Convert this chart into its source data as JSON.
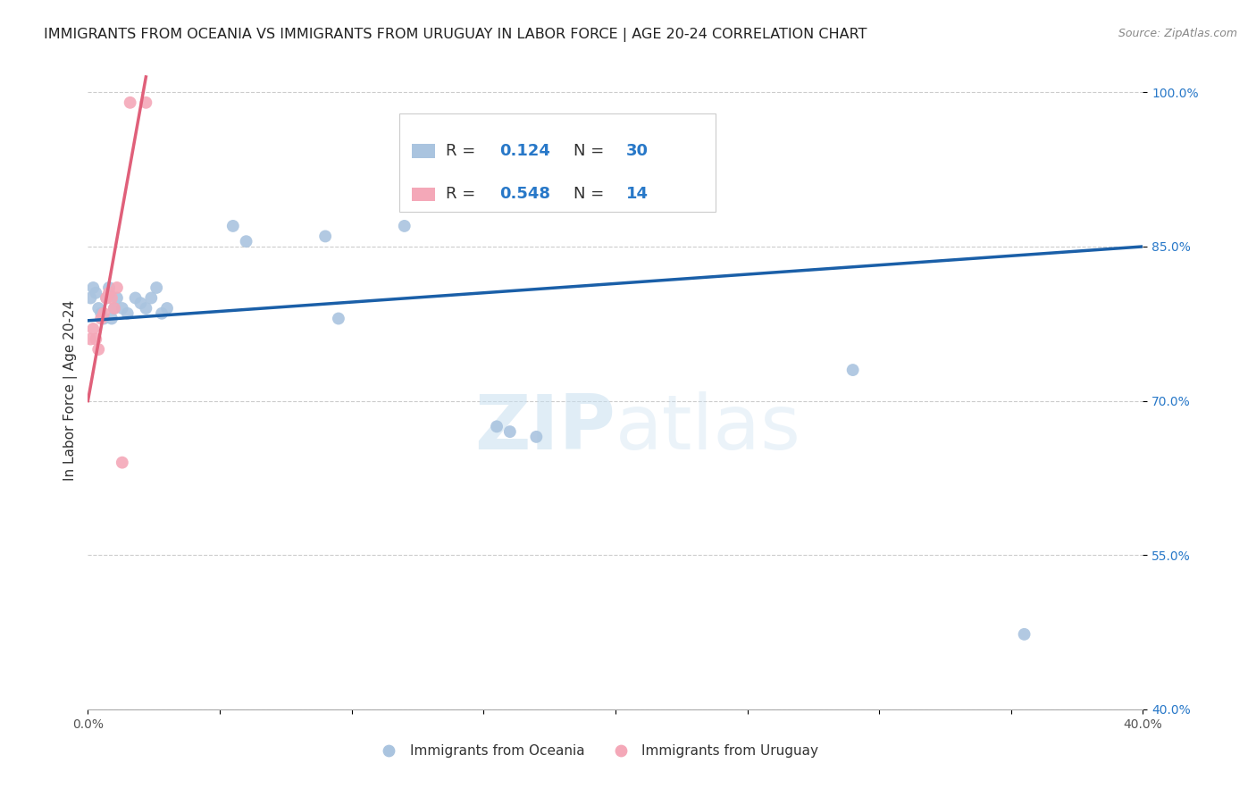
{
  "title": "IMMIGRANTS FROM OCEANIA VS IMMIGRANTS FROM URUGUAY IN LABOR FORCE | AGE 20-24 CORRELATION CHART",
  "source": "Source: ZipAtlas.com",
  "ylabel": "In Labor Force | Age 20-24",
  "xlim": [
    0.0,
    0.4
  ],
  "ylim": [
    0.4,
    1.02
  ],
  "xticks": [
    0.0,
    0.05,
    0.1,
    0.15,
    0.2,
    0.25,
    0.3,
    0.35,
    0.4
  ],
  "xticklabels": [
    "0.0%",
    "",
    "",
    "",
    "",
    "",
    "",
    "",
    "40.0%"
  ],
  "yticks": [
    0.4,
    0.55,
    0.7,
    0.85,
    1.0
  ],
  "yticklabels": [
    "40.0%",
    "55.0%",
    "70.0%",
    "85.0%",
    "100.0%"
  ],
  "oceania_x": [
    0.001,
    0.002,
    0.003,
    0.004,
    0.005,
    0.006,
    0.007,
    0.008,
    0.009,
    0.01,
    0.011,
    0.013,
    0.015,
    0.018,
    0.02,
    0.022,
    0.024,
    0.026,
    0.028,
    0.03,
    0.055,
    0.06,
    0.09,
    0.095,
    0.12,
    0.155,
    0.16,
    0.17,
    0.29,
    0.355
  ],
  "oceania_y": [
    0.8,
    0.81,
    0.805,
    0.79,
    0.785,
    0.78,
    0.8,
    0.81,
    0.78,
    0.79,
    0.8,
    0.79,
    0.785,
    0.8,
    0.795,
    0.79,
    0.8,
    0.81,
    0.785,
    0.79,
    0.87,
    0.855,
    0.86,
    0.78,
    0.87,
    0.675,
    0.67,
    0.665,
    0.73,
    0.473
  ],
  "uruguay_x": [
    0.001,
    0.002,
    0.003,
    0.004,
    0.005,
    0.006,
    0.007,
    0.008,
    0.009,
    0.01,
    0.011,
    0.013,
    0.016,
    0.022
  ],
  "uruguay_y": [
    0.76,
    0.77,
    0.76,
    0.75,
    0.78,
    0.785,
    0.8,
    0.805,
    0.8,
    0.79,
    0.81,
    0.64,
    0.99,
    0.99
  ],
  "oceania_color": "#aac4df",
  "uruguay_color": "#f4a8b8",
  "oceania_trend_color": "#1a5fa8",
  "uruguay_trend_color": "#e0607a",
  "legend_r_oceania": "0.124",
  "legend_n_oceania": "30",
  "legend_r_uruguay": "0.548",
  "legend_n_uruguay": "14",
  "legend_label_oceania": "Immigrants from Oceania",
  "legend_label_uruguay": "Immigrants from Uruguay",
  "watermark_zip": "ZIP",
  "watermark_atlas": "atlas",
  "dot_size": 100,
  "title_fontsize": 11.5,
  "axis_label_fontsize": 11,
  "tick_fontsize": 10,
  "legend_fontsize": 13,
  "blue_color": "#2878c8"
}
